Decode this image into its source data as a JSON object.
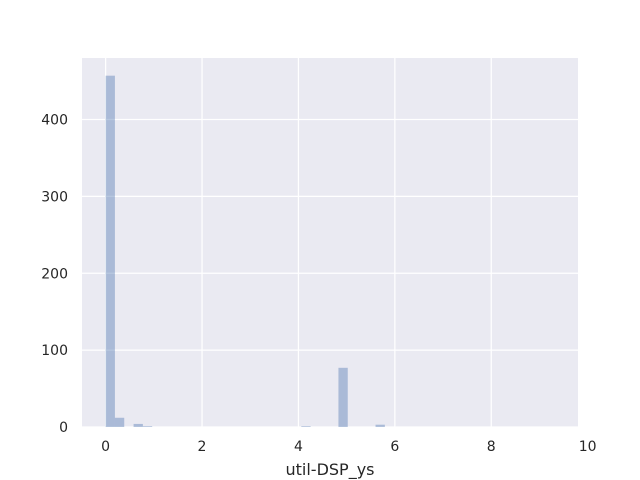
{
  "chart_data": {
    "type": "bar",
    "title": "",
    "xlabel": "util-DSP_ys",
    "ylabel": "",
    "xlim": [
      -0.49,
      9.8
    ],
    "ylim": [
      0,
      480
    ],
    "xticks": [
      0,
      2,
      4,
      6,
      8,
      10
    ],
    "yticks": [
      0,
      100,
      200,
      300,
      400
    ],
    "grid": true,
    "bin_width": 0.193,
    "bars": [
      {
        "x": 0.0,
        "value": 457
      },
      {
        "x": 0.193,
        "value": 12
      },
      {
        "x": 0.58,
        "value": 4
      },
      {
        "x": 0.773,
        "value": 1
      },
      {
        "x": 4.06,
        "value": 1
      },
      {
        "x": 4.83,
        "value": 77
      },
      {
        "x": 5.6,
        "value": 3
      }
    ],
    "colors": {
      "background": "#eaeaf2",
      "bar": "#4c72b0",
      "grid": "#ffffff",
      "text": "#262626"
    }
  }
}
